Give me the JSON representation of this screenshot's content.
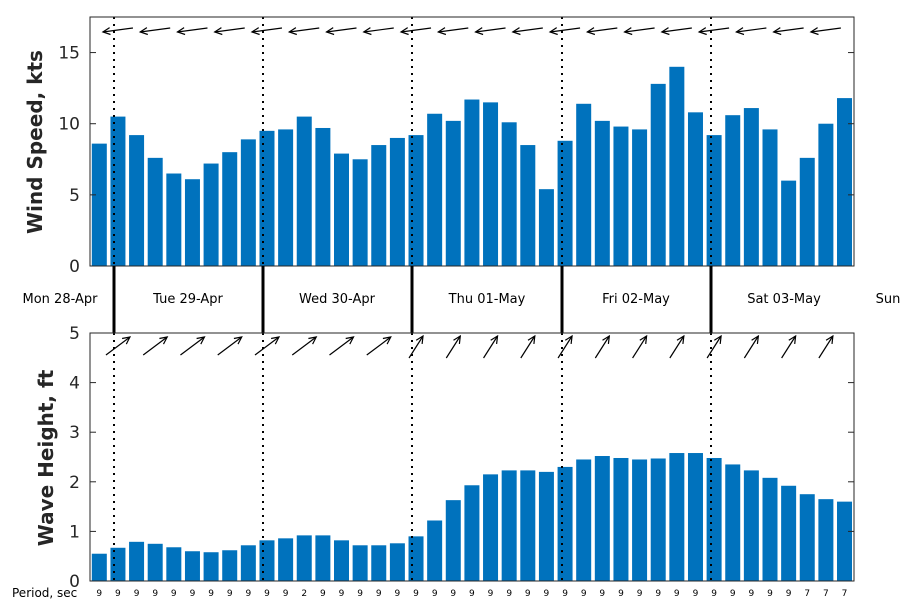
{
  "chart_data": [
    {
      "type": "bar",
      "ylabel": "Wind Speed, kts",
      "ylim": [
        0,
        17.5
      ],
      "yticks": [
        0,
        5,
        10,
        15
      ],
      "grid": false,
      "color": "#0072BD",
      "values": [
        8.6,
        10.5,
        9.2,
        7.6,
        6.5,
        6.1,
        7.2,
        8.0,
        8.9,
        9.5,
        9.6,
        10.5,
        9.7,
        7.9,
        7.5,
        8.5,
        9.0,
        9.2,
        10.7,
        10.2,
        11.7,
        11.5,
        10.1,
        8.5,
        5.4,
        8.8,
        11.4,
        10.2,
        9.8,
        9.6,
        12.8,
        14.0,
        10.8,
        9.2,
        10.6,
        11.1,
        9.6,
        6.0,
        7.6,
        10.0,
        11.8
      ],
      "direction_arrows": "east-to-west"
    },
    {
      "type": "bar",
      "ylabel": "Wave Height, ft",
      "ylim": [
        0,
        5
      ],
      "yticks": [
        0,
        1,
        2,
        3,
        4,
        5
      ],
      "grid": false,
      "color": "#0072BD",
      "values": [
        0.55,
        0.67,
        0.79,
        0.75,
        0.68,
        0.6,
        0.58,
        0.62,
        0.72,
        0.82,
        0.86,
        0.92,
        0.92,
        0.82,
        0.72,
        0.72,
        0.76,
        0.9,
        1.22,
        1.63,
        1.93,
        2.15,
        2.23,
        2.23,
        2.2,
        2.3,
        2.45,
        2.52,
        2.48,
        2.45,
        2.47,
        2.58,
        2.58,
        2.48,
        2.35,
        2.23,
        2.08,
        1.92,
        1.75,
        1.65,
        1.6
      ],
      "direction_arrows": "southwest-to-northeast"
    }
  ],
  "days": [
    "Mon 28-Apr",
    "Tue 29-Apr",
    "Wed 30-Apr",
    "Thu 01-May",
    "Fri 02-May",
    "Sat 03-May",
    "Sun"
  ],
  "period": {
    "title": "Period, sec",
    "values": [
      "9",
      "9",
      "9",
      "9",
      "9",
      "9",
      "9",
      "9",
      "9",
      "9",
      "9",
      "2",
      "9",
      "9",
      "9",
      "9",
      "9",
      "9",
      "9",
      "9",
      "9",
      "9",
      "9",
      "9",
      "9",
      "9",
      "9",
      "9",
      "9",
      "9",
      "9",
      "9",
      "9",
      "9",
      "9",
      "9",
      "9",
      "9",
      "7",
      "7",
      "7"
    ]
  }
}
